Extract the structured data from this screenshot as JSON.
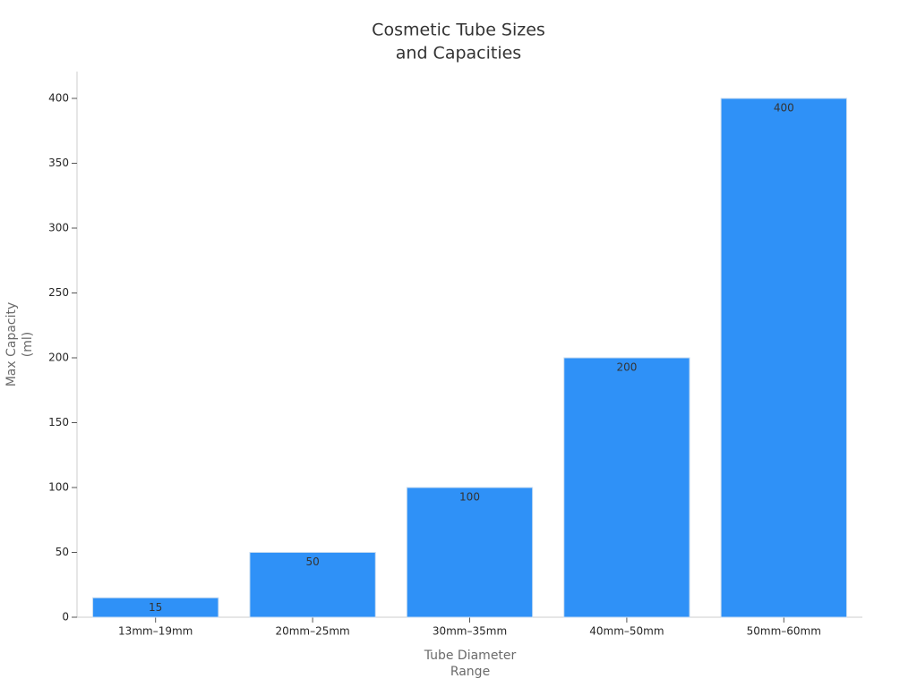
{
  "chart_data": {
    "type": "bar",
    "title": [
      "Cosmetic Tube Sizes",
      "and Capacities"
    ],
    "xlabel": [
      "Tube Diameter",
      "Range"
    ],
    "ylabel": [
      "Max Capacity",
      "(ml)"
    ],
    "categories": [
      "13mm–19mm",
      "20mm–25mm",
      "30mm–35mm",
      "40mm–50mm",
      "50mm–60mm"
    ],
    "values": [
      15,
      50,
      100,
      200,
      400
    ],
    "color": "#2f91f7",
    "ylim": [
      0,
      420
    ],
    "yticks": [
      0,
      50,
      100,
      150,
      200,
      250,
      300,
      350,
      400
    ],
    "grid": false
  }
}
